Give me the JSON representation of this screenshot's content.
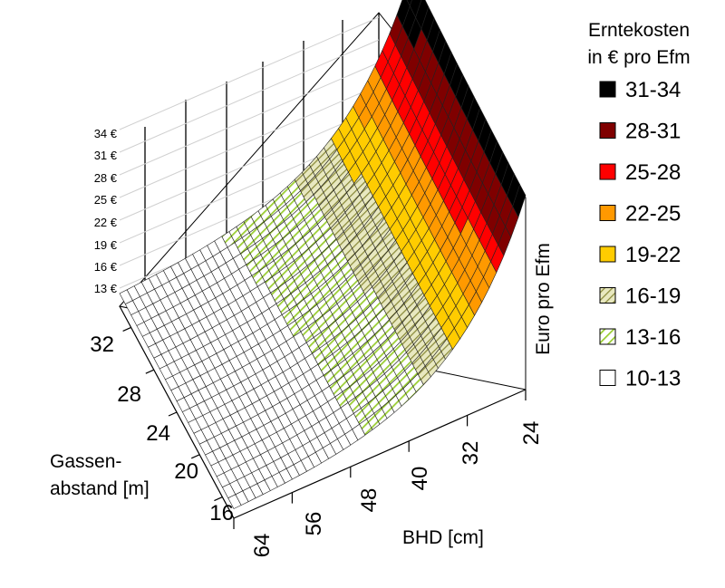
{
  "chart_data": {
    "type": "surface3d",
    "title": "",
    "legend_title_line1": "Erntekosten",
    "legend_title_line2": "in € pro Efm",
    "zlabel": "Euro pro Efm",
    "xlabel": "BHD [cm]",
    "ylabel_line1": "Gassen-",
    "ylabel_line2": "abstand [m]",
    "z_ticks": [
      "34 €",
      "31 €",
      "28 €",
      "25 €",
      "22 €",
      "19 €",
      "16 €",
      "13 €"
    ],
    "z_tick_values": [
      34,
      31,
      28,
      25,
      22,
      19,
      16,
      13
    ],
    "x_ticks": [
      "24",
      "32",
      "40",
      "48",
      "56",
      "64"
    ],
    "x_tick_values": [
      24,
      32,
      40,
      48,
      56,
      64
    ],
    "y_ticks": [
      "32",
      "28",
      "24",
      "20",
      "16"
    ],
    "y_tick_values": [
      32,
      28,
      24,
      20,
      16
    ],
    "x_range": [
      24,
      64
    ],
    "y_range": [
      14,
      34
    ],
    "z_range": [
      10,
      34
    ],
    "legend": [
      {
        "label": "31-34",
        "color": "#000000",
        "pattern": "solid"
      },
      {
        "label": "28-31",
        "color": "#7f0000",
        "pattern": "solid"
      },
      {
        "label": "25-28",
        "color": "#ff0000",
        "pattern": "solid"
      },
      {
        "label": "22-25",
        "color": "#ff9900",
        "pattern": "solid"
      },
      {
        "label": "19-22",
        "color": "#ffcc00",
        "pattern": "solid"
      },
      {
        "label": "16-19",
        "color": "#cccc88",
        "pattern": "hatch"
      },
      {
        "label": "13-16",
        "color": "#99cc33",
        "pattern": "hatch"
      },
      {
        "label": "10-13",
        "color": "#ffffff",
        "pattern": "solid"
      }
    ],
    "surface_corner_values": [
      {
        "bhd": 24,
        "gassenabstand": 34,
        "euro": 34
      },
      {
        "bhd": 24,
        "gassenabstand": 14,
        "euro": 24
      },
      {
        "bhd": 64,
        "gassenabstand": 14,
        "euro": 11
      },
      {
        "bhd": 64,
        "gassenabstand": 34,
        "euro": 12
      }
    ],
    "surface_profile_along_bhd": [
      {
        "bhd": 24,
        "euro": 33
      },
      {
        "bhd": 28,
        "euro": 27
      },
      {
        "bhd": 32,
        "euro": 23
      },
      {
        "bhd": 36,
        "euro": 19
      },
      {
        "bhd": 40,
        "euro": 16
      },
      {
        "bhd": 44,
        "euro": 14
      },
      {
        "bhd": 48,
        "euro": 13
      },
      {
        "bhd": 52,
        "euro": 12
      },
      {
        "bhd": 56,
        "euro": 11.5
      },
      {
        "bhd": 60,
        "euro": 11.2
      },
      {
        "bhd": 64,
        "euro": 11
      }
    ]
  }
}
